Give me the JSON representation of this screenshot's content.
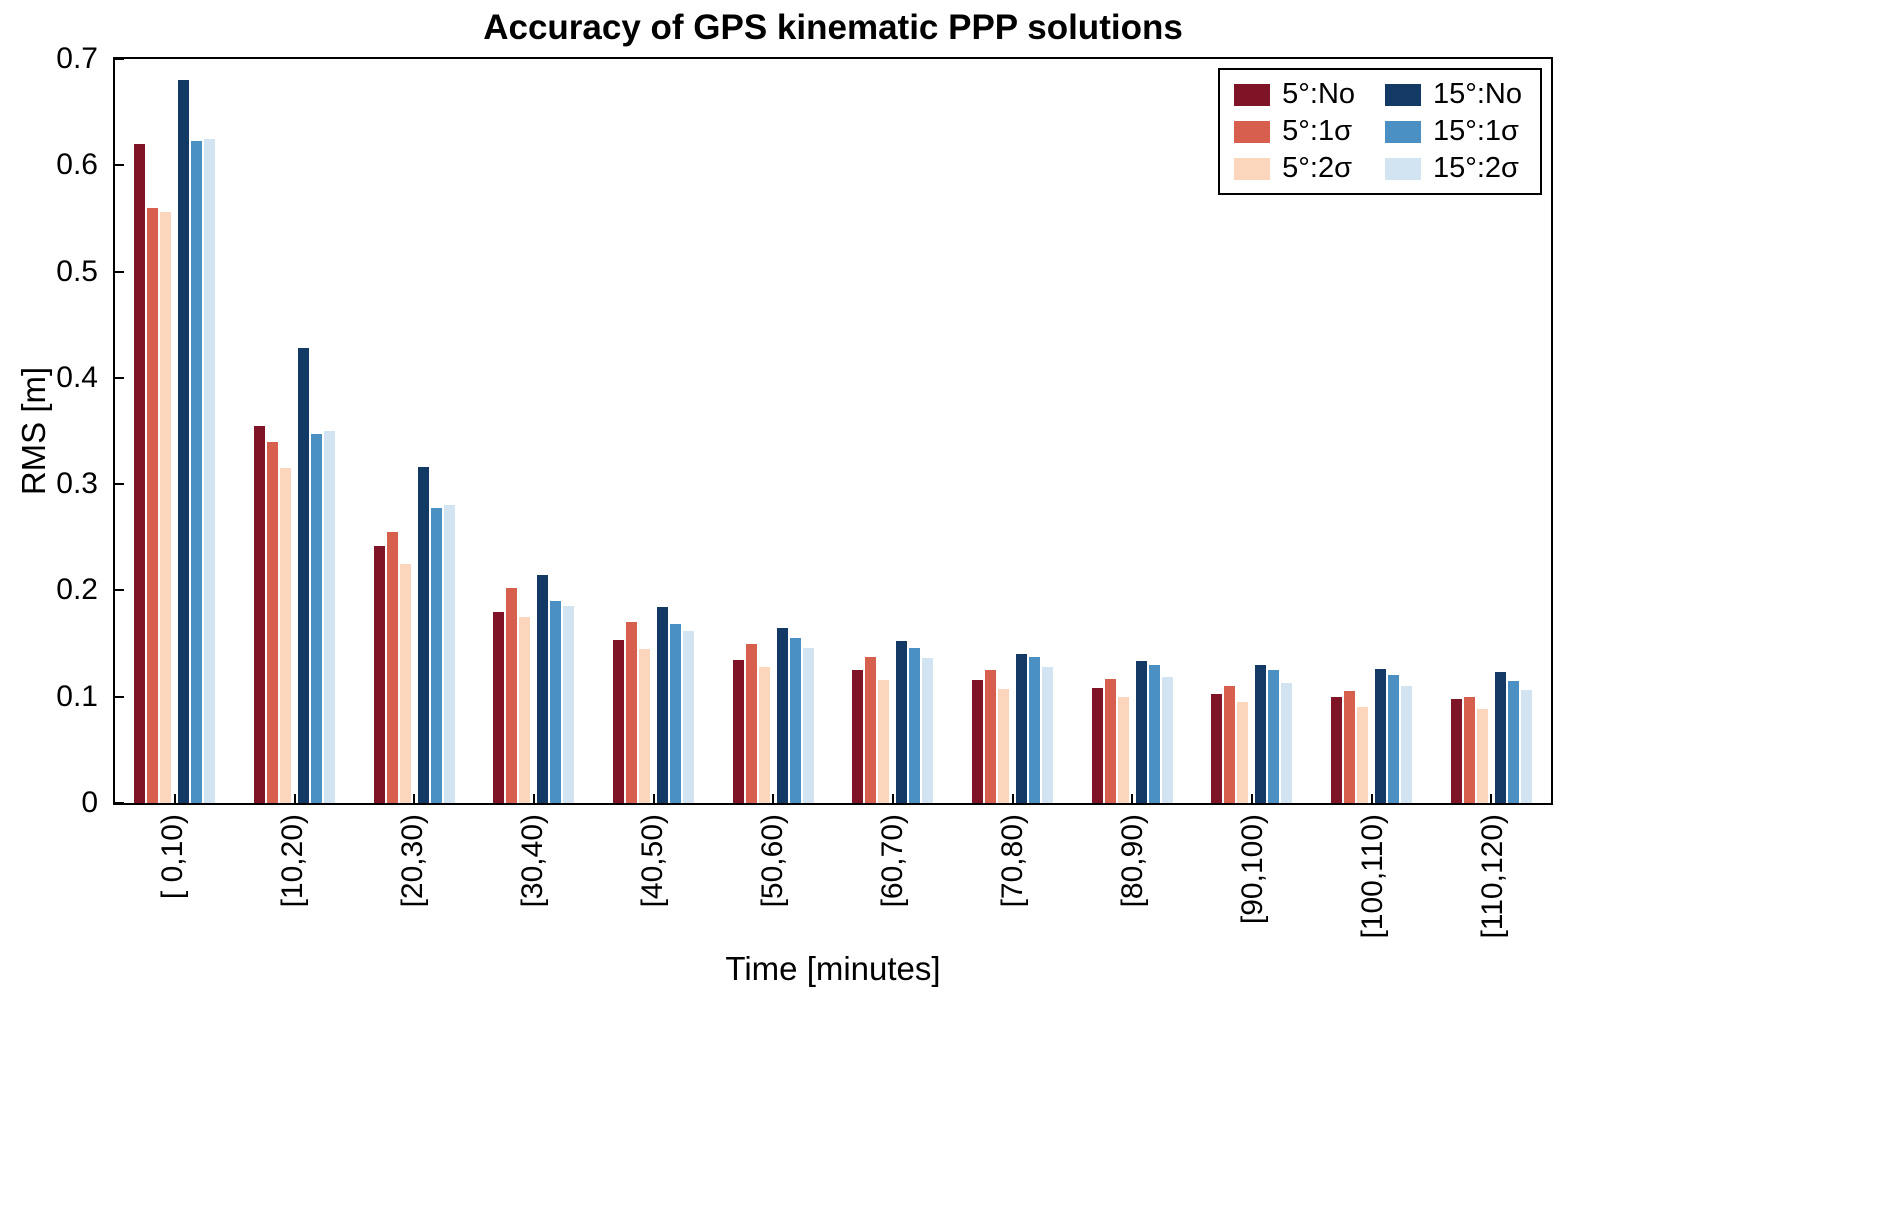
{
  "chart_data": {
    "type": "bar",
    "title": "Accuracy of GPS kinematic PPP solutions",
    "xlabel": "Time [minutes]",
    "ylabel": "RMS [m]",
    "ylim": [
      0,
      0.7
    ],
    "grid": false,
    "legend_position": "top-right",
    "categories": [
      "[ 0,10)",
      "[10,20)",
      "[20,30)",
      "[30,40)",
      "[40,50)",
      "[50,60)",
      "[60,70)",
      "[70,80)",
      "[80,90)",
      "[90,100)",
      "[100,110)",
      "[110,120)"
    ],
    "yticks": [
      {
        "label": "0",
        "value": 0.0
      },
      {
        "label": "0.1",
        "value": 0.1
      },
      {
        "label": "0.2",
        "value": 0.2
      },
      {
        "label": "0.3",
        "value": 0.3
      },
      {
        "label": "0.4",
        "value": 0.4
      },
      {
        "label": "0.5",
        "value": 0.5
      },
      {
        "label": "0.6",
        "value": 0.6
      },
      {
        "label": "0.7",
        "value": 0.7
      }
    ],
    "series": [
      {
        "name": "5°:No",
        "color": "#7e1425",
        "values": [
          0.62,
          0.355,
          0.242,
          0.18,
          0.153,
          0.135,
          0.125,
          0.116,
          0.108,
          0.103,
          0.1,
          0.098
        ]
      },
      {
        "name": "5°:1σ",
        "color": "#d6604d",
        "values": [
          0.56,
          0.34,
          0.255,
          0.202,
          0.17,
          0.15,
          0.137,
          0.125,
          0.117,
          0.11,
          0.105,
          0.1
        ]
      },
      {
        "name": "5°:2σ",
        "color": "#fcd5bd",
        "values": [
          0.556,
          0.315,
          0.225,
          0.175,
          0.145,
          0.128,
          0.116,
          0.107,
          0.1,
          0.095,
          0.09,
          0.088
        ]
      },
      {
        "name": "15°:No",
        "color": "#123a64",
        "values": [
          0.68,
          0.428,
          0.316,
          0.215,
          0.184,
          0.165,
          0.152,
          0.14,
          0.134,
          0.13,
          0.126,
          0.123
        ]
      },
      {
        "name": "15°:1σ",
        "color": "#4a90c2",
        "values": [
          0.623,
          0.347,
          0.278,
          0.19,
          0.168,
          0.155,
          0.146,
          0.137,
          0.13,
          0.125,
          0.12,
          0.115
        ]
      },
      {
        "name": "15°:2σ",
        "color": "#d2e3f1",
        "values": [
          0.625,
          0.35,
          0.28,
          0.185,
          0.162,
          0.146,
          0.136,
          0.128,
          0.119,
          0.113,
          0.11,
          0.106
        ]
      }
    ]
  }
}
